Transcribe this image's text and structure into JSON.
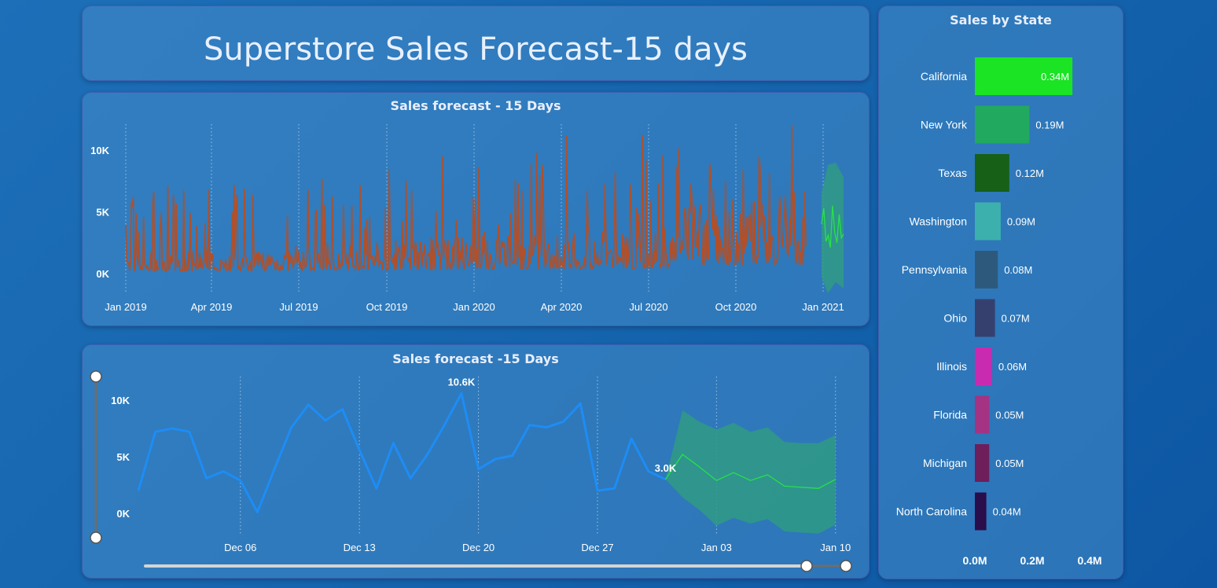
{
  "header": {
    "title": "Superstore Sales Forecast-15 days"
  },
  "colors": {
    "actual_top": "#b0502a",
    "actual_bottom": "#1e8cf5",
    "forecast_line": "#29e04a",
    "forecast_band": "#2f9a85"
  },
  "chart_data": [
    {
      "type": "line",
      "title": "Sales forecast - 15 Days",
      "x_ticks": [
        "Jan 2019",
        "Apr 2019",
        "Jul 2019",
        "Oct 2019",
        "Jan 2020",
        "Apr 2020",
        "Jul 2020",
        "Oct 2020",
        "Jan 2021"
      ],
      "y_ticks": [
        "0K",
        "5K",
        "10K"
      ],
      "ylim": [
        0,
        12000
      ],
      "grid": "vertical dotted",
      "series": [
        {
          "kind": "actual",
          "x_range": [
            "2019-01-01",
            "2020-12-30"
          ],
          "typical_range": [
            0,
            12000
          ]
        },
        {
          "kind": "forecast",
          "x_range": [
            "2020-12-31",
            "2021-01-10"
          ]
        }
      ]
    },
    {
      "type": "line",
      "title": "Sales forecast -15 Days",
      "x_ticks": [
        "Dec 06",
        "Dec 13",
        "Dec 20",
        "Dec 27",
        "Jan 03",
        "Jan 10"
      ],
      "y_ticks": [
        "0K",
        "5K",
        "10K"
      ],
      "ylim": [
        -1000,
        12000
      ],
      "grid": "vertical dotted",
      "actual": {
        "x": [
          "Nov 30",
          "Dec 01",
          "Dec 02",
          "Dec 03",
          "Dec 04",
          "Dec 05",
          "Dec 06",
          "Dec 07",
          "Dec 08",
          "Dec 09",
          "Dec 10",
          "Dec 11",
          "Dec 12",
          "Dec 13",
          "Dec 14",
          "Dec 15",
          "Dec 16",
          "Dec 17",
          "Dec 18",
          "Dec 19",
          "Dec 20",
          "Dec 21",
          "Dec 22",
          "Dec 23",
          "Dec 24",
          "Dec 25",
          "Dec 26",
          "Dec 27",
          "Dec 28",
          "Dec 29",
          "Dec 30",
          "Dec 31"
        ],
        "values": [
          2000,
          7200,
          7500,
          7200,
          3100,
          3700,
          2900,
          100,
          3900,
          7600,
          9600,
          8200,
          9200,
          5600,
          2200,
          6200,
          3100,
          5200,
          7800,
          10600,
          3900,
          4800,
          5100,
          7800,
          7600,
          8100,
          9700,
          2000,
          2200,
          6600,
          3700,
          3000
        ]
      },
      "forecast": {
        "x": [
          "Dec 31",
          "Jan 01",
          "Jan 02",
          "Jan 03",
          "Jan 04",
          "Jan 05",
          "Jan 06",
          "Jan 07",
          "Jan 08",
          "Jan 09",
          "Jan 10"
        ],
        "values": [
          3000,
          5200,
          4100,
          2900,
          3600,
          2900,
          3400,
          2400,
          2300,
          2200,
          3000
        ],
        "upper": [
          3000,
          9100,
          8100,
          7400,
          8000,
          7200,
          7600,
          6300,
          6200,
          6200,
          6900
        ],
        "lower": [
          3000,
          1400,
          300,
          -1100,
          -400,
          -900,
          -500,
          -1600,
          -1700,
          -1800,
          -1000
        ]
      },
      "data_labels": [
        {
          "x": "Dec 19",
          "text": "10.6K"
        },
        {
          "x": "Dec 31",
          "text": "3.0K"
        }
      ]
    },
    {
      "type": "bar",
      "orientation": "horizontal",
      "title": "Sales by State",
      "categories": [
        "California",
        "New York",
        "Texas",
        "Washington",
        "Pennsylvania",
        "Ohio",
        "Illinois",
        "Florida",
        "Michigan",
        "North Carolina"
      ],
      "values": [
        0.34,
        0.19,
        0.12,
        0.09,
        0.08,
        0.07,
        0.06,
        0.05,
        0.05,
        0.04
      ],
      "labels": [
        "0.34M",
        "0.19M",
        "0.12M",
        "0.09M",
        "0.08M",
        "0.07M",
        "0.06M",
        "0.05M",
        "0.05M",
        "0.04M"
      ],
      "colors": [
        "#1ae424",
        "#21a95f",
        "#176018",
        "#3cb0ad",
        "#2d5a7c",
        "#36406e",
        "#c92bb0",
        "#a43384",
        "#6e1e5b",
        "#2a0d4b"
      ],
      "x_ticks": [
        "0.0M",
        "0.2M",
        "0.4M"
      ],
      "xlim": [
        0,
        0.4
      ]
    }
  ]
}
